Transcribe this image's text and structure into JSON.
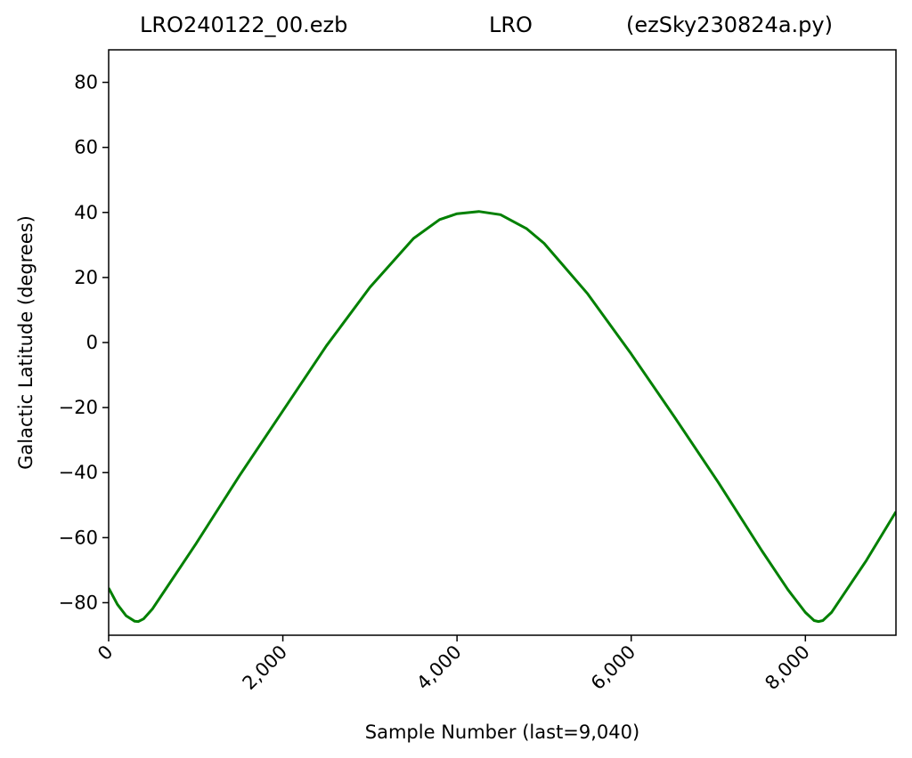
{
  "title": {
    "left": "LRO240122_00.ezb",
    "center": "LRO",
    "right": "(ezSky230824a.py)"
  },
  "chart_data": {
    "type": "line",
    "xlabel": "Sample Number (last=9,040)",
    "ylabel": "Galactic Latitude (degrees)",
    "xlim": [
      0,
      9040
    ],
    "ylim": [
      -90,
      90
    ],
    "x_ticks": [
      0,
      2000,
      4000,
      6000,
      8000
    ],
    "x_tick_labels": [
      "0",
      "2,000",
      "4,000",
      "6,000",
      "8,000"
    ],
    "y_ticks": [
      -80,
      -60,
      -40,
      -20,
      0,
      20,
      40,
      60,
      80
    ],
    "y_tick_labels": [
      "−80",
      "−60",
      "−40",
      "−20",
      "0",
      "20",
      "40",
      "60",
      "80"
    ],
    "grid": false,
    "series": [
      {
        "color": "#008000",
        "x": [
          0,
          100,
          200,
          300,
          340,
          400,
          500,
          700,
          1000,
          1500,
          2000,
          2500,
          3000,
          3500,
          3800,
          4000,
          4250,
          4500,
          4800,
          5000,
          5500,
          6000,
          6500,
          7000,
          7500,
          7800,
          8000,
          8100,
          8150,
          8200,
          8300,
          8500,
          8700,
          9040
        ],
        "y": [
          -75.5,
          -80.5,
          -84,
          -85.7,
          -85.8,
          -85,
          -82,
          -74,
          -62,
          -41,
          -21,
          -1,
          17,
          32,
          37.8,
          39.6,
          40.3,
          39.3,
          35,
          30.5,
          15,
          -3.5,
          -23,
          -43,
          -64,
          -76,
          -83,
          -85.5,
          -85.8,
          -85.5,
          -83,
          -75,
          -67,
          -52
        ]
      }
    ]
  }
}
